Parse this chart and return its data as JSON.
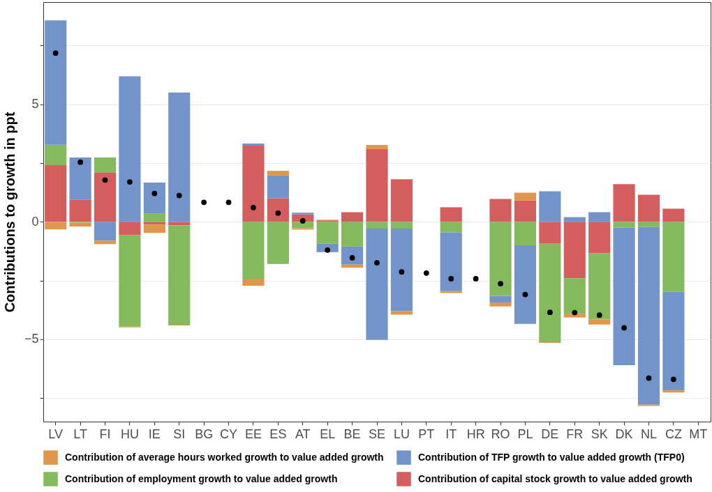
{
  "chart_data": {
    "type": "bar",
    "stacked": true,
    "ylabel": "Contributions to growth in ppt",
    "categories": [
      "LV",
      "LT",
      "FI",
      "HU",
      "IE",
      "SI",
      "BG",
      "CY",
      "EE",
      "ES",
      "AT",
      "EL",
      "BE",
      "SE",
      "LU",
      "PT",
      "IT",
      "HR",
      "RO",
      "PL",
      "DE",
      "FR",
      "SK",
      "DK",
      "NL",
      "CZ",
      "MT"
    ],
    "series": [
      {
        "name": "Contribution of capital stock growth to value added growth",
        "color": "#d45d5d",
        "values": [
          2.41,
          0.94,
          2.11,
          -0.57,
          -0.12,
          -0.15,
          null,
          null,
          3.24,
          1.0,
          0.32,
          0.06,
          0.41,
          3.09,
          1.81,
          null,
          0.62,
          null,
          0.97,
          0.91,
          -0.93,
          -2.4,
          -1.34,
          1.6,
          1.15,
          0.56,
          null
        ]
      },
      {
        "name": "Contribution of employment growth to value added growth",
        "color": "#84b95c",
        "values": [
          0.87,
          -0.04,
          0.63,
          -3.89,
          0.36,
          -4.23,
          null,
          null,
          -2.42,
          -1.79,
          -0.27,
          -0.93,
          -1.05,
          -0.29,
          -0.29,
          null,
          -0.45,
          null,
          -3.15,
          -1.0,
          -4.19,
          -1.51,
          -2.81,
          -0.24,
          -0.22,
          -2.97,
          null
        ]
      },
      {
        "name": "Contribution of TFP growth to value added growth (TFP0)",
        "color": "#7393cb",
        "values": [
          5.29,
          1.8,
          -0.8,
          6.19,
          1.31,
          5.5,
          null,
          null,
          0.09,
          0.97,
          0.07,
          -0.36,
          -0.77,
          -4.73,
          -3.51,
          null,
          -2.5,
          null,
          -0.28,
          -3.34,
          1.3,
          0.2,
          0.41,
          -5.86,
          -7.56,
          -4.2,
          null
        ]
      },
      {
        "name": "Contribution of average hours worked growth to value added growth",
        "color": "#e0974c",
        "values": [
          -0.32,
          -0.16,
          -0.15,
          -0.03,
          -0.35,
          -0.03,
          null,
          null,
          -0.3,
          0.2,
          -0.06,
          0.03,
          -0.13,
          0.18,
          -0.15,
          null,
          -0.08,
          null,
          -0.17,
          0.33,
          -0.03,
          -0.16,
          -0.22,
          null,
          -0.05,
          -0.09,
          null
        ]
      },
      {
        "type": "scatter",
        "color": "#000000",
        "values": [
          7.18,
          2.54,
          1.78,
          1.7,
          1.21,
          1.12,
          0.83,
          0.83,
          0.61,
          0.37,
          0.04,
          -1.2,
          -1.53,
          -1.74,
          -2.13,
          -2.18,
          -2.42,
          -2.42,
          -2.63,
          -3.09,
          -3.85,
          -3.86,
          -3.97,
          -4.51,
          -6.65,
          -6.7,
          null
        ]
      }
    ],
    "ylim": [
      -8.5,
      9.35
    ],
    "yticks": [
      {
        "value": -7.5,
        "label": null
      },
      {
        "value": -5,
        "label": "−5"
      },
      {
        "value": -2.5,
        "label": null
      },
      0,
      {
        "value": 2.5,
        "label": null
      },
      5,
      {
        "value": 7.5,
        "label": null
      }
    ],
    "grid": "y",
    "legend": "bottom",
    "marker": "circle"
  }
}
